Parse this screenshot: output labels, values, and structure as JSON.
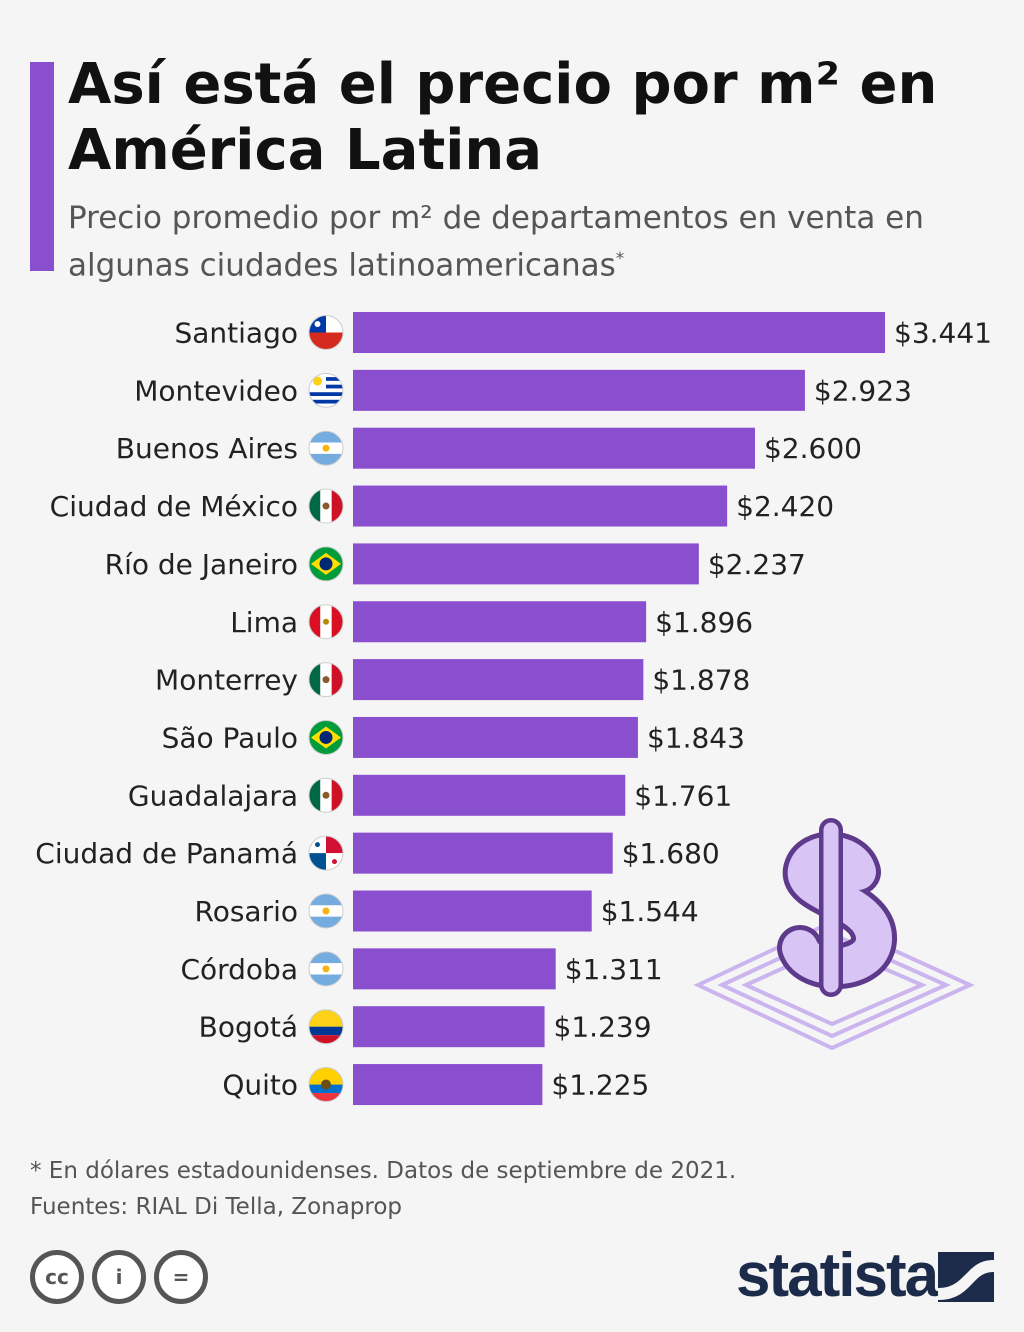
{
  "header": {
    "title": "Así está el precio por m² en América Latina",
    "subtitle": "Precio promedio por m² de departamentos en venta en algunas ciudades latinoamericanas",
    "subtitle_mark": "*"
  },
  "chart_data": {
    "type": "bar",
    "orientation": "horizontal",
    "categories": [
      "Santiago",
      "Montevideo",
      "Buenos Aires",
      "Ciudad de México",
      "Río de Janeiro",
      "Lima",
      "Monterrey",
      "São Paulo",
      "Guadalajara",
      "Ciudad de Panamá",
      "Rosario",
      "Córdoba",
      "Bogotá",
      "Quito"
    ],
    "values": [
      3441,
      2923,
      2600,
      2420,
      2237,
      1896,
      1878,
      1843,
      1761,
      1680,
      1544,
      1311,
      1239,
      1225
    ],
    "value_labels": [
      "$3.441",
      "$2.923",
      "$2.600",
      "$2.420",
      "$2.237",
      "$1.896",
      "$1.878",
      "$1.843",
      "$1.761",
      "$1.680",
      "$1.544",
      "$1.311",
      "$1.239",
      "$1.225"
    ],
    "flags": [
      "chile",
      "uruguay",
      "argentina",
      "mexico",
      "brazil",
      "peru",
      "mexico",
      "brazil",
      "mexico",
      "panama",
      "argentina",
      "argentina",
      "colombia",
      "ecuador"
    ],
    "xlim": [
      0,
      3441
    ],
    "bar_color": "#8a4fcf"
  },
  "footer": {
    "note": "* En dólares estadounidenses. Datos de septiembre de 2021.",
    "sources": "Fuentes: RIAL Di Tella, Zonaprop",
    "brand": "statista",
    "license_icons": [
      "cc",
      "i",
      "="
    ]
  }
}
